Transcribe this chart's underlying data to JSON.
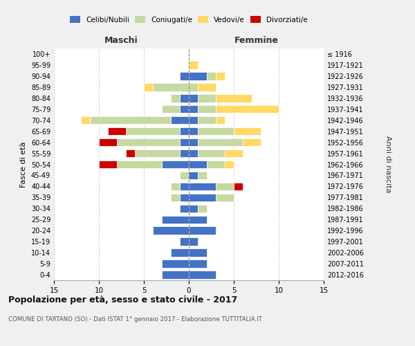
{
  "age_groups": [
    "0-4",
    "5-9",
    "10-14",
    "15-19",
    "20-24",
    "25-29",
    "30-34",
    "35-39",
    "40-44",
    "45-49",
    "50-54",
    "55-59",
    "60-64",
    "65-69",
    "70-74",
    "75-79",
    "80-84",
    "85-89",
    "90-94",
    "95-99",
    "100+"
  ],
  "birth_years": [
    "2012-2016",
    "2007-2011",
    "2002-2006",
    "1997-2001",
    "1992-1996",
    "1987-1991",
    "1982-1986",
    "1977-1981",
    "1972-1976",
    "1967-1971",
    "1962-1966",
    "1957-1961",
    "1952-1956",
    "1947-1951",
    "1942-1946",
    "1937-1941",
    "1932-1936",
    "1927-1931",
    "1922-1926",
    "1917-1921",
    "≤ 1916"
  ],
  "maschi": {
    "celibi": [
      3,
      3,
      2,
      1,
      4,
      3,
      1,
      1,
      1,
      0,
      3,
      1,
      1,
      1,
      2,
      1,
      1,
      0,
      1,
      0,
      0
    ],
    "coniugati": [
      0,
      0,
      0,
      0,
      0,
      0,
      0,
      1,
      1,
      1,
      5,
      5,
      7,
      6,
      9,
      2,
      1,
      4,
      0,
      0,
      0
    ],
    "vedovi": [
      0,
      0,
      0,
      0,
      0,
      0,
      0,
      0,
      0,
      0,
      0,
      0,
      0,
      0,
      1,
      0,
      0,
      1,
      0,
      0,
      0
    ],
    "divorziati": [
      0,
      0,
      0,
      0,
      0,
      0,
      0,
      0,
      0,
      0,
      2,
      1,
      2,
      2,
      0,
      0,
      0,
      0,
      0,
      0,
      0
    ]
  },
  "femmine": {
    "nubili": [
      3,
      2,
      2,
      1,
      3,
      2,
      1,
      3,
      3,
      1,
      2,
      1,
      1,
      1,
      1,
      1,
      1,
      0,
      2,
      0,
      0
    ],
    "coniugate": [
      0,
      0,
      0,
      0,
      0,
      0,
      1,
      2,
      2,
      1,
      2,
      3,
      5,
      4,
      2,
      2,
      2,
      1,
      1,
      0,
      0
    ],
    "vedove": [
      0,
      0,
      0,
      0,
      0,
      0,
      0,
      0,
      0,
      0,
      1,
      2,
      2,
      3,
      1,
      7,
      4,
      2,
      1,
      1,
      0
    ],
    "divorziate": [
      0,
      0,
      0,
      0,
      0,
      0,
      0,
      0,
      1,
      0,
      0,
      0,
      0,
      0,
      0,
      0,
      0,
      0,
      0,
      0,
      0
    ]
  },
  "colors": {
    "celibi": "#4472C4",
    "coniugati": "#C5D9A0",
    "vedovi": "#FFD966",
    "divorziati": "#CC0000"
  },
  "xlim": 15,
  "title": "Popolazione per età, sesso e stato civile - 2017",
  "subtitle": "COMUNE DI TARTANO (SO) - Dati ISTAT 1° gennaio 2017 - Elaborazione TUTTITALIA.IT",
  "ylabel": "Fasce di età",
  "ylabel_right": "Anni di nascita",
  "legend_labels": [
    "Celibi/Nubili",
    "Coniugati/e",
    "Vedovi/e",
    "Divorziati/e"
  ],
  "bg_color": "#f0f0f0",
  "plot_bg": "#ffffff"
}
